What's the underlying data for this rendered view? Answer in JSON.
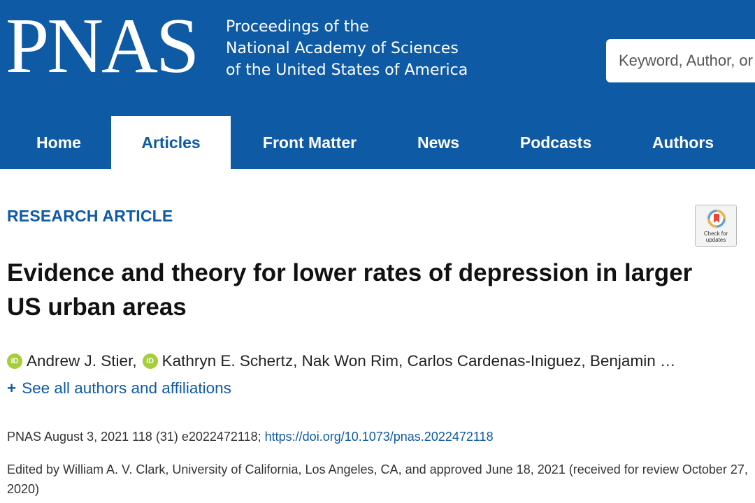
{
  "header": {
    "logo": "PNAS",
    "proceedings": [
      "Proceedings of the",
      "National Academy of Sciences",
      "of the United States of America"
    ],
    "search_placeholder": "Keyword, Author, or DOI",
    "background_color": "#0f5aa5"
  },
  "nav": {
    "items": [
      {
        "label": "Home"
      },
      {
        "label": "Articles"
      },
      {
        "label": "Front Matter"
      },
      {
        "label": "News"
      },
      {
        "label": "Podcasts"
      },
      {
        "label": "Authors"
      }
    ],
    "active": "Articles"
  },
  "article": {
    "section": "RESEARCH ARTICLE",
    "badge_text": [
      "Check for",
      "updates"
    ],
    "title": "Evidence and theory for lower rates of depression in larger US urban areas",
    "authors": {
      "a1": "Andrew J. Stier,",
      "a2": "Kathryn E. Schertz, Nak Won Rim, Carlos Cardenas-Iniguez, Benjamin …"
    },
    "orcid_icon_text": "iD",
    "see_all_plus": "+",
    "see_all": "See all authors and affiliations",
    "citation_text": "PNAS August 3, 2021 118 (31) e2022472118;",
    "doi": "https://doi.org/10.1073/pnas.2022472118",
    "edited_by": "Edited by William A. V. Clark, University of California, Los Angeles, CA, and approved June 18, 2021 (received for review October 27, 2020)"
  }
}
